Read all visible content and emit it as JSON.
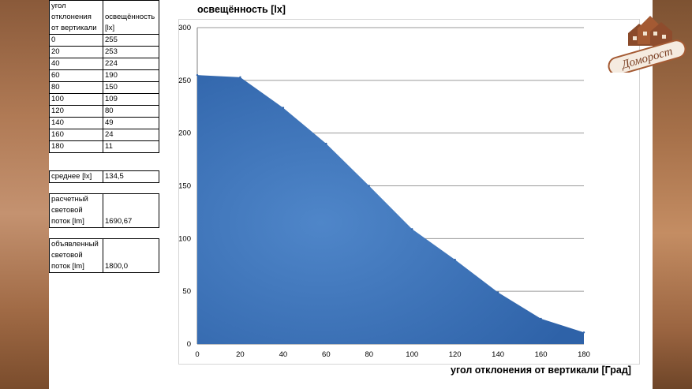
{
  "table": {
    "header_col1": [
      "угол",
      "отклонения",
      "от вертикали"
    ],
    "header_col2": [
      "освещённость",
      "[lx]"
    ],
    "rows": [
      {
        "angle": "0",
        "lux": "255"
      },
      {
        "angle": "20",
        "lux": "253"
      },
      {
        "angle": "40",
        "lux": "224"
      },
      {
        "angle": "60",
        "lux": "190"
      },
      {
        "angle": "80",
        "lux": "150"
      },
      {
        "angle": "100",
        "lux": "109"
      },
      {
        "angle": "120",
        "lux": "80"
      },
      {
        "angle": "140",
        "lux": "49"
      },
      {
        "angle": "160",
        "lux": "24"
      },
      {
        "angle": "180",
        "lux": "11"
      }
    ]
  },
  "summary": {
    "average_label": "среднее  [lx]",
    "average_value": "134,5",
    "calc_label": [
      "расчетный",
      "световой",
      "поток  [lm]"
    ],
    "calc_value": "1690,67",
    "declared_label": [
      "объявленный",
      "световой",
      "поток  [lm]"
    ],
    "declared_value": "1800,0"
  },
  "logo": {
    "text": "Доморост"
  },
  "chart_data": {
    "type": "area",
    "title": "освещённость [lx]",
    "xlabel": "угол отклонения от вертикали  [Град]",
    "ylabel": "",
    "x": [
      0,
      20,
      40,
      60,
      80,
      100,
      120,
      140,
      160,
      180
    ],
    "series": [
      {
        "values": [
          255,
          253,
          224,
          190,
          150,
          109,
          80,
          49,
          24,
          11
        ]
      }
    ],
    "xlim": [
      0,
      180
    ],
    "ylim": [
      0,
      300
    ],
    "xticks": [
      "0",
      "20",
      "40",
      "60",
      "80",
      "100",
      "120",
      "140",
      "160",
      "180"
    ],
    "yticks": [
      "0",
      "50",
      "100",
      "150",
      "200",
      "250",
      "300"
    ],
    "grid": true,
    "colors": {
      "fill_dark": "#2e62a8",
      "fill_light": "#4f86c9",
      "grid": "#9a9a9a"
    }
  }
}
